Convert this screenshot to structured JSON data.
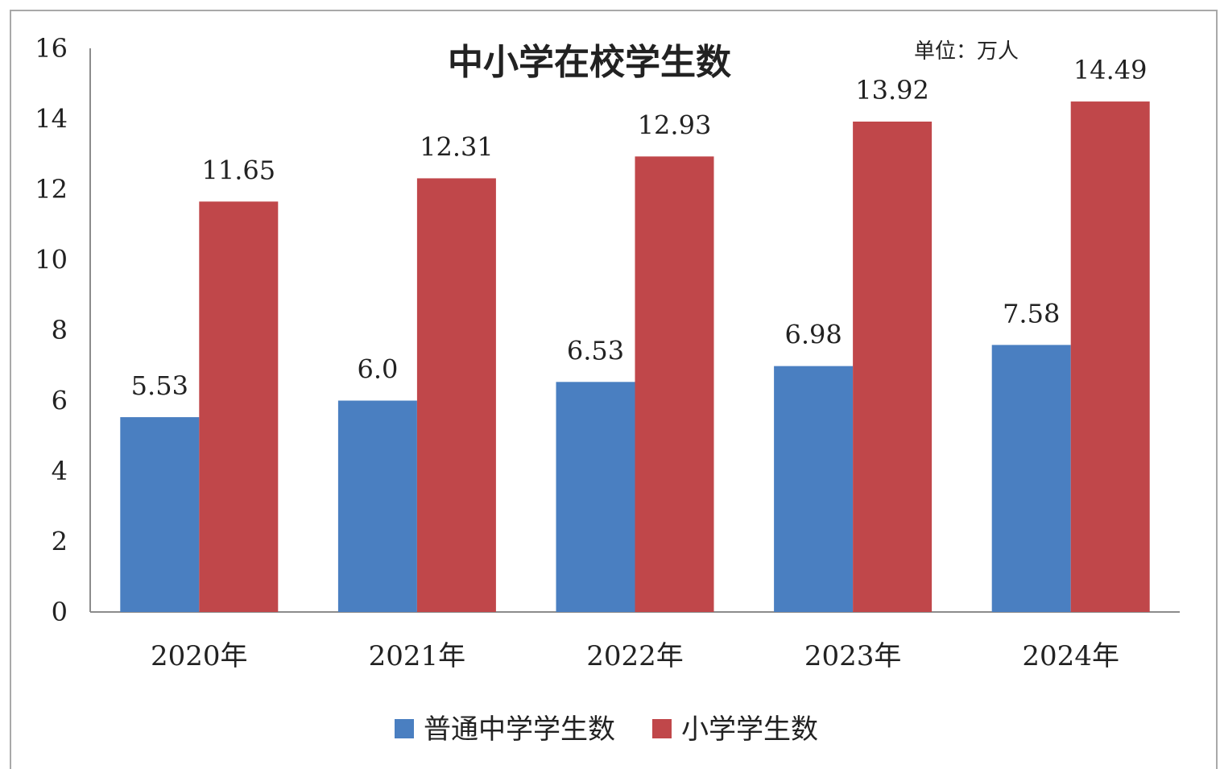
{
  "chart_data": {
    "type": "bar",
    "title": "中小学在校学生数",
    "unit_note": "单位：万人",
    "categories": [
      "2020年",
      "2021年",
      "2022年",
      "2023年",
      "2024年"
    ],
    "series": [
      {
        "name": "普通中学学生数",
        "color": "#4a7fc1",
        "values": [
          5.53,
          6.0,
          6.53,
          6.98,
          7.58
        ],
        "labels": [
          "5.53",
          "6.0",
          "6.53",
          "6.98",
          "7.58"
        ]
      },
      {
        "name": "小学学生数",
        "color": "#c0474a",
        "values": [
          11.65,
          12.31,
          12.93,
          13.92,
          14.49
        ],
        "labels": [
          "11.65",
          "12.31",
          "12.93",
          "13.92",
          "14.49"
        ]
      }
    ],
    "yticks": [
      "0",
      "2",
      "4",
      "6",
      "8",
      "10",
      "12",
      "14",
      "16"
    ],
    "ylim": [
      0,
      16
    ],
    "legend_position": "bottom",
    "grid": false
  }
}
